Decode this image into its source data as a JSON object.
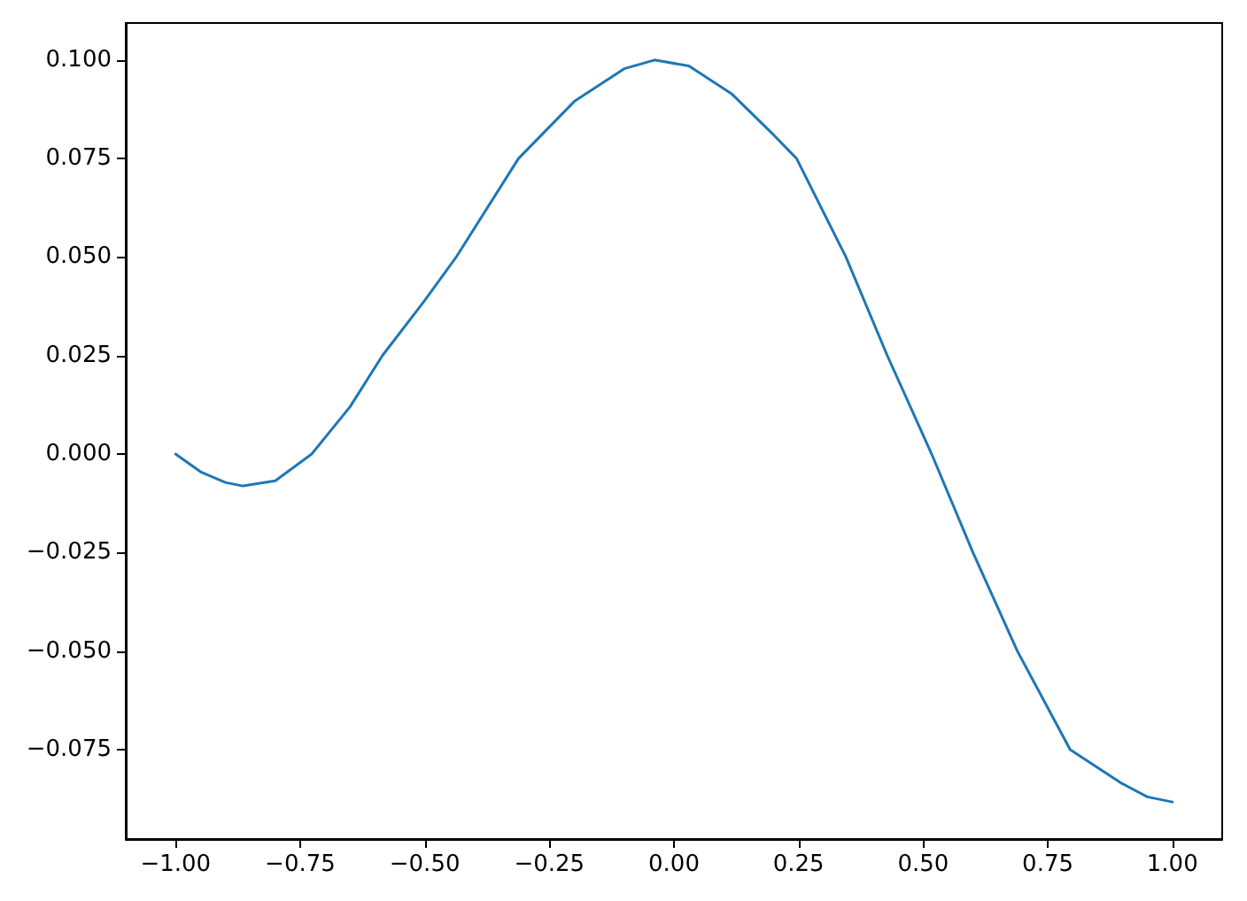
{
  "chart_data": {
    "type": "line",
    "x": [
      -1,
      -0.95,
      -0.9,
      -0.865,
      -0.8,
      -0.727,
      -0.65,
      -0.585,
      -0.5,
      -0.437,
      -0.312,
      -0.2,
      -0.1,
      -0.039,
      0.03,
      0.115,
      0.2,
      0.246,
      0.345,
      0.428,
      0.517,
      0.6,
      0.689,
      0.795,
      0.896,
      0.95,
      1
    ],
    "series": [
      {
        "color": "#1f77b4",
        "values": [
          0,
          -0.0045,
          -0.0072,
          -0.0081,
          -0.0068,
          0,
          0.012,
          0.025,
          0.039,
          0.05,
          0.075,
          0.0895,
          0.0978,
          0.1,
          0.0985,
          0.0915,
          0.081,
          0.075,
          0.05,
          0.025,
          0,
          -0.025,
          -0.05,
          -0.075,
          -0.0834,
          -0.087,
          -0.0883
        ]
      }
    ],
    "xlim": [
      -1.1,
      1.1
    ],
    "xticks": [
      {
        "value": -1,
        "label": "−1.00"
      },
      {
        "value": -0.75,
        "label": "−0.75"
      },
      {
        "value": -0.5,
        "label": "−0.50"
      },
      {
        "value": -0.25,
        "label": "−0.25"
      },
      {
        "value": 0,
        "label": "0.00"
      },
      {
        "value": 0.25,
        "label": "0.25"
      },
      {
        "value": 0.5,
        "label": "0.50"
      },
      {
        "value": 0.75,
        "label": "0.75"
      },
      {
        "value": 1,
        "label": "1.00"
      }
    ],
    "ylim": [
      -0.0977,
      0.1094
    ],
    "yticks": [
      {
        "value": -0.075,
        "label": "−0.075"
      },
      {
        "value": -0.05,
        "label": "−0.050"
      },
      {
        "value": -0.025,
        "label": "−0.025"
      },
      {
        "value": 0,
        "label": "0.000"
      },
      {
        "value": 0.025,
        "label": "0.025"
      },
      {
        "value": 0.05,
        "label": "0.050"
      },
      {
        "value": 0.075,
        "label": "0.075"
      },
      {
        "value": 0.1,
        "label": "0.100"
      }
    ],
    "grid": false,
    "marker": "none",
    "line_style": "solid"
  }
}
